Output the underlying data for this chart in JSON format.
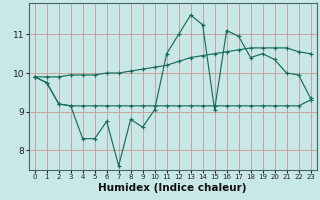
{
  "xlabel": "Humidex (Indice chaleur)",
  "background_color": "#c8e8e8",
  "grid_color": "#c89898",
  "line_color": "#1a6b5a",
  "xlim": [
    -0.5,
    23.5
  ],
  "ylim": [
    7.5,
    11.8
  ],
  "yticks": [
    8,
    9,
    10,
    11
  ],
  "xticks": [
    0,
    1,
    2,
    3,
    4,
    5,
    6,
    7,
    8,
    9,
    10,
    11,
    12,
    13,
    14,
    15,
    16,
    17,
    18,
    19,
    20,
    21,
    22,
    23
  ],
  "series": [
    [
      9.9,
      9.75,
      9.2,
      9.15,
      8.3,
      8.3,
      8.75,
      7.6,
      8.8,
      8.6,
      9.05,
      10.5,
      11.0,
      11.5,
      11.25,
      9.05,
      11.1,
      10.95,
      10.4,
      10.5,
      10.35,
      10.0,
      9.95,
      9.35
    ],
    [
      9.9,
      9.75,
      9.2,
      9.15,
      9.15,
      9.15,
      9.15,
      9.15,
      9.15,
      9.15,
      9.15,
      9.15,
      9.15,
      9.15,
      9.15,
      9.15,
      9.15,
      9.15,
      9.15,
      9.15,
      9.15,
      9.15,
      9.15,
      9.3
    ],
    [
      9.9,
      9.9,
      9.9,
      9.95,
      9.95,
      9.95,
      10.0,
      10.0,
      10.05,
      10.1,
      10.15,
      10.2,
      10.3,
      10.4,
      10.45,
      10.5,
      10.55,
      10.6,
      10.65,
      10.65,
      10.65,
      10.65,
      10.55,
      10.5
    ]
  ]
}
